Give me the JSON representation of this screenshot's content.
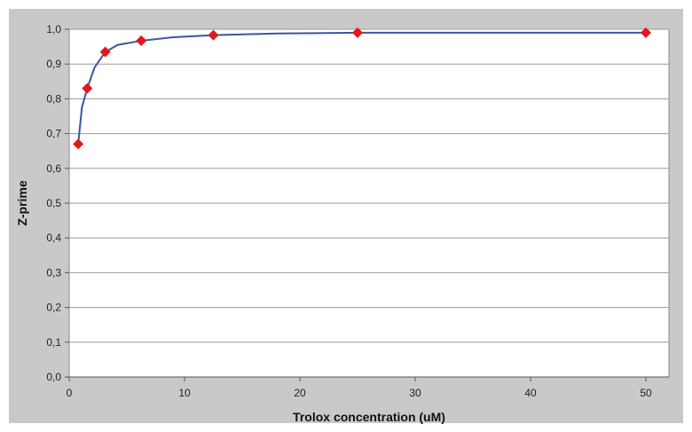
{
  "chart_data": {
    "type": "scatter",
    "title": "",
    "xlabel": "Trolox concentration (uM)",
    "ylabel": "Z-prime",
    "xlim": [
      0,
      52
    ],
    "ylim": [
      0.0,
      1.0
    ],
    "x_ticks": [
      0,
      10,
      20,
      30,
      40,
      50
    ],
    "y_ticks": [
      "0,0",
      "0,1",
      "0,2",
      "0,3",
      "0,4",
      "0,5",
      "0,6",
      "0,7",
      "0,8",
      "0,9",
      "1,0"
    ],
    "grid": "horizontal",
    "colors": {
      "marker": "#e0191b",
      "line": "#3f53a0",
      "plot_background": "#ffffff",
      "frame_background": "#c9c9c9",
      "grid": "#9a9a9a"
    },
    "series": [
      {
        "x": [
          0.78,
          1.56,
          3.13,
          6.25,
          12.5,
          25,
          50
        ],
        "y": [
          0.67,
          0.83,
          0.935,
          0.967,
          0.983,
          0.99,
          0.99
        ]
      }
    ],
    "fit_curve": {
      "x": [
        0.78,
        1.1,
        1.56,
        2.2,
        3.13,
        4.2,
        6.25,
        9,
        12.5,
        18,
        25,
        37,
        50
      ],
      "y": [
        0.67,
        0.775,
        0.83,
        0.89,
        0.935,
        0.955,
        0.967,
        0.977,
        0.983,
        0.988,
        0.99,
        0.99,
        0.99
      ]
    }
  }
}
